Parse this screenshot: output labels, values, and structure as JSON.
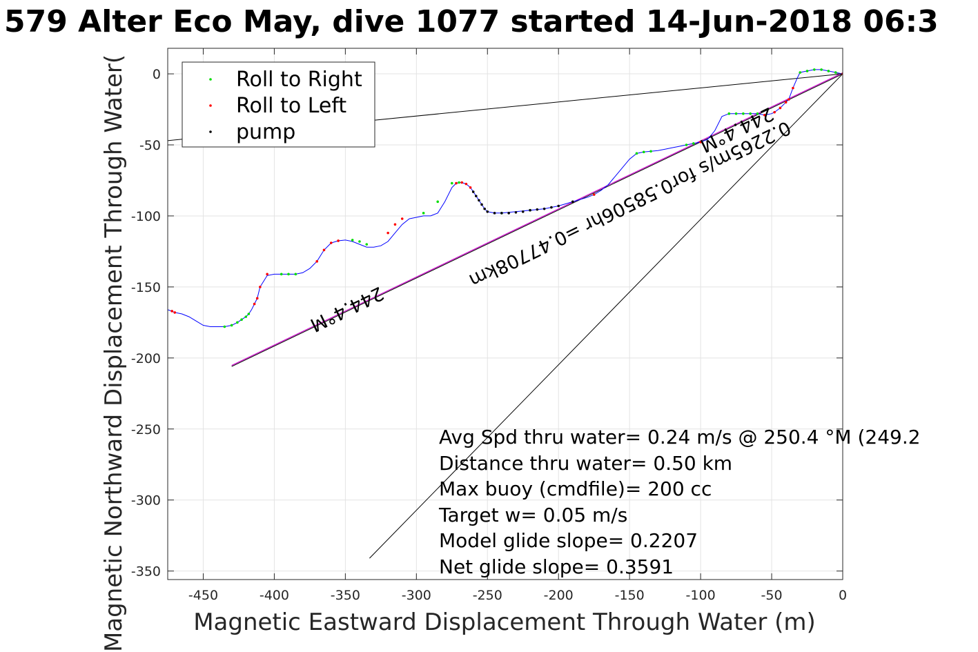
{
  "chart_data": {
    "type": "line",
    "title": "579 Alter Eco May, dive 1077 started 14-Jun-2018 06:3",
    "xlabel": "Magnetic Eastward Displacement Through Water (m)",
    "ylabel": "Magnetic Northward Displacement Through Water(",
    "xlim": [
      -475,
      0
    ],
    "ylim": [
      -356,
      18
    ],
    "xticks": [
      -450,
      -400,
      -350,
      -300,
      -250,
      -200,
      -150,
      -100,
      -50,
      0
    ],
    "yticks": [
      0,
      -50,
      -100,
      -150,
      -200,
      -250,
      -300,
      -350
    ],
    "xtick_labels": [
      "-450",
      "-400",
      "-350",
      "-300",
      "-250",
      "-200",
      "-150",
      "-100",
      "-50",
      "0"
    ],
    "ytick_labels": [
      "0",
      "-50",
      "-100",
      "-150",
      "-200",
      "-250",
      "-300",
      "-350"
    ],
    "grid": true,
    "legend": {
      "placement": "top-left",
      "entries": [
        {
          "label": "Roll to Right",
          "color": "#00dd00"
        },
        {
          "label": "Roll to Left",
          "color": "#ff0000"
        },
        {
          "label": "pump",
          "color": "#000000"
        }
      ]
    },
    "track": {
      "color": "#0000ff",
      "x": [
        0,
        -5,
        -10,
        -15,
        -20,
        -25,
        -30,
        -32,
        -35,
        -38,
        -40,
        -44,
        -48,
        -50,
        -55,
        -60,
        -65,
        -70,
        -75,
        -80,
        -85,
        -90,
        -95,
        -100,
        -105,
        -110,
        -115,
        -120,
        -125,
        -130,
        -135,
        -140,
        -145,
        -150,
        -155,
        -160,
        -165,
        -170,
        -175,
        -180,
        -190,
        -200,
        -210,
        -220,
        -230,
        -240,
        -245,
        -250,
        -252,
        -254,
        -256,
        -258,
        -260,
        -262,
        -265,
        -268,
        -270,
        -272,
        -275,
        -280,
        -285,
        -290,
        -295,
        -300,
        -305,
        -310,
        -315,
        -320,
        -325,
        -330,
        -335,
        -340,
        -345,
        -350,
        -355,
        -360,
        -365,
        -370,
        -375,
        -380,
        -385,
        -390,
        -395,
        -400,
        -405,
        -410,
        -412,
        -414,
        -416,
        -418,
        -420,
        -423,
        -426,
        -430,
        -435,
        -440,
        -445,
        -450,
        -455,
        -460,
        -465,
        -470,
        -475
      ],
      "y": [
        0,
        1,
        2,
        3,
        3,
        2,
        1,
        -3,
        -10,
        -18,
        -20,
        -24,
        -27,
        -28,
        -29,
        -28,
        -28,
        -28,
        -28,
        -28,
        -30,
        -40,
        -46,
        -48,
        -49,
        -50,
        -51,
        -52,
        -53,
        -54,
        -54.5,
        -55,
        -56,
        -60,
        -66,
        -72,
        -78,
        -82,
        -85,
        -87,
        -90,
        -93,
        -95,
        -96,
        -97,
        -98,
        -98,
        -97,
        -95,
        -92,
        -89,
        -86,
        -83,
        -80,
        -77.5,
        -76.5,
        -76.5,
        -77,
        -80,
        -90,
        -98,
        -100,
        -100,
        -101,
        -102,
        -106,
        -112,
        -118,
        -121,
        -122,
        -122,
        -120,
        -118,
        -117,
        -117.5,
        -119,
        -124,
        -132,
        -137,
        -140,
        -141,
        -141,
        -141,
        -141,
        -142,
        -150,
        -158,
        -162,
        -166,
        -169,
        -171,
        -173,
        -175,
        -177,
        -178,
        -178,
        -178,
        -177,
        -174,
        -171,
        -169,
        -168,
        -166
      ]
    },
    "roll_right": {
      "color": "#00dd00",
      "x": [
        -5,
        -10,
        -15,
        -20,
        -25,
        -30,
        -60,
        -65,
        -70,
        -75,
        -80,
        -105,
        -110,
        -135,
        -140,
        -145,
        -175,
        -220,
        -240,
        -270,
        -275,
        -285,
        -295,
        -335,
        -340,
        -345,
        -385,
        -390,
        -395,
        -418,
        -420,
        -423,
        -426,
        -430,
        -435
      ],
      "y": [
        1,
        2,
        3,
        3,
        2,
        1,
        -28,
        -28,
        -28,
        -28,
        -28,
        -49,
        -50,
        -54.5,
        -55,
        -56,
        -85,
        -96,
        -98,
        -76.5,
        -77,
        -90,
        -98,
        -120,
        -118,
        -117,
        -141,
        -141,
        -141,
        -169,
        -171,
        -173,
        -175,
        -177,
        -178
      ]
    },
    "roll_left": {
      "color": "#ff0000",
      "x": [
        0,
        -35,
        -38,
        -40,
        -44,
        -48,
        -55,
        -100,
        -175,
        -262,
        -265,
        -268,
        -272,
        -310,
        -315,
        -320,
        -355,
        -360,
        -365,
        -370,
        -405,
        -410,
        -412,
        -414,
        -470,
        -472
      ],
      "y": [
        0,
        -10,
        -18,
        -20,
        -24,
        -27,
        -29,
        -48,
        -85,
        -80,
        -77.5,
        -76.5,
        -77,
        -102,
        -106,
        -112,
        -117.5,
        -119,
        -124,
        -132,
        -141,
        -150,
        -158,
        -162,
        -168,
        -167
      ]
    },
    "pump": {
      "color": "#000000",
      "x": [
        -252,
        -254,
        -256,
        -258,
        -260,
        -250,
        -245,
        -240,
        -235,
        -230,
        -225,
        -220,
        -215,
        -210,
        -205,
        -200,
        -190
      ],
      "y": [
        -95,
        -92,
        -89,
        -86,
        -83,
        -97,
        -98,
        -98,
        -98,
        -97.5,
        -97,
        -96,
        -95.5,
        -95,
        -94,
        -93,
        -90
      ]
    },
    "heading_line": {
      "color": "#cc00cc",
      "x": [
        0,
        -430
      ],
      "y": [
        0,
        -206
      ],
      "label": "0.2265m/s for0.58506hr =0.47708km"
    },
    "ref_lines": [
      {
        "x": [
          0,
          -475
        ],
        "y": [
          0,
          -47
        ]
      },
      {
        "x": [
          0,
          -333
        ],
        "y": [
          0,
          -341
        ]
      }
    ],
    "heading_labels": [
      "244.4°M",
      "244.4°M"
    ],
    "annotations": [
      "Avg Spd thru water=  0.24 m/s @ 250.4 °M (249.2",
      "Distance thru water=  0.50 km",
      "Max buoy (cmdfile)= 200 cc",
      "Target w= 0.05 m/s",
      "Model glide slope= 0.2207",
      "Net glide slope= 0.3591"
    ]
  }
}
